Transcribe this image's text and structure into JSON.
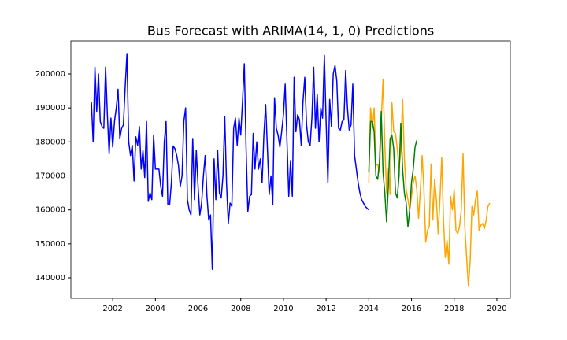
{
  "chart_data": {
    "type": "line",
    "title": "Bus Forecast with ARIMA(14, 1, 0) Predictions",
    "xlim": [
      2000.04,
      2020.63
    ],
    "xticks": [
      2002,
      2004,
      2006,
      2008,
      2010,
      2012,
      2014,
      2016,
      2018,
      2020
    ],
    "ylim": [
      133980,
      209720
    ],
    "yticks": [
      140000,
      150000,
      160000,
      170000,
      180000,
      190000,
      200000
    ],
    "grid": false,
    "series": [
      {
        "color": "#0000ff",
        "x": [
          2001,
          2001.083,
          2001.167,
          2001.25,
          2001.333,
          2001.417,
          2001.5,
          2001.583,
          2001.667,
          2001.75,
          2001.833,
          2001.917,
          2002,
          2002.083,
          2002.167,
          2002.25,
          2002.333,
          2002.417,
          2002.5,
          2002.583,
          2002.667,
          2002.75,
          2002.833,
          2002.917,
          2003,
          2003.083,
          2003.167,
          2003.25,
          2003.333,
          2003.417,
          2003.5,
          2003.583,
          2003.667,
          2003.75,
          2003.833,
          2003.917,
          2004,
          2004.083,
          2004.167,
          2004.25,
          2004.333,
          2004.417,
          2004.5,
          2004.583,
          2004.667,
          2004.75,
          2004.833,
          2004.917,
          2005,
          2005.083,
          2005.167,
          2005.25,
          2005.333,
          2005.417,
          2005.5,
          2005.583,
          2005.667,
          2005.75,
          2005.833,
          2005.917,
          2006,
          2006.083,
          2006.167,
          2006.25,
          2006.333,
          2006.417,
          2006.5,
          2006.583,
          2006.667,
          2006.75,
          2006.833,
          2006.917,
          2007,
          2007.083,
          2007.167,
          2007.25,
          2007.333,
          2007.417,
          2007.5,
          2007.583,
          2007.667,
          2007.75,
          2007.833,
          2007.917,
          2008,
          2008.083,
          2008.167,
          2008.25,
          2008.333,
          2008.417,
          2008.5,
          2008.583,
          2008.667,
          2008.75,
          2008.833,
          2008.917,
          2009,
          2009.083,
          2009.167,
          2009.25,
          2009.333,
          2009.417,
          2009.5,
          2009.583,
          2009.667,
          2009.75,
          2009.833,
          2009.917,
          2010,
          2010.083,
          2010.167,
          2010.25,
          2010.333,
          2010.417,
          2010.5,
          2010.583,
          2010.667,
          2010.75,
          2010.833,
          2010.917,
          2011,
          2011.083,
          2011.167,
          2011.25,
          2011.333,
          2011.417,
          2011.5,
          2011.583,
          2011.667,
          2011.75,
          2011.833,
          2011.917,
          2012,
          2012.083,
          2012.167,
          2012.25,
          2012.333,
          2012.417,
          2012.5,
          2012.583,
          2012.667,
          2012.75,
          2012.833,
          2012.917,
          2013,
          2013.083,
          2013.167,
          2013.25,
          2013.333,
          2013.417,
          2013.5,
          2013.583,
          2013.667,
          2013.75,
          2013.833,
          2013.917,
          2014
        ],
        "values": [
          191800,
          180000,
          202000,
          189000,
          200000,
          186000,
          184500,
          184000,
          202000,
          188000,
          176500,
          187000,
          178500,
          186000,
          190000,
          195500,
          181000,
          184000,
          185000,
          196000,
          206000,
          180000,
          176000,
          179000,
          168500,
          181500,
          179000,
          184500,
          172000,
          177500,
          169500,
          186000,
          162500,
          165000,
          163000,
          182000,
          172000,
          172000,
          172000,
          167000,
          164000,
          180000,
          186000,
          161500,
          161500,
          168000,
          178800,
          178000,
          176000,
          173000,
          167000,
          170000,
          186000,
          190000,
          163000,
          160000,
          158500,
          181000,
          163000,
          177500,
          167000,
          158500,
          162000,
          170000,
          176000,
          164000,
          157000,
          158500,
          142500,
          175000,
          163000,
          177500,
          165000,
          163500,
          170000,
          187500,
          168000,
          156000,
          162000,
          161000,
          184000,
          187000,
          179000,
          187000,
          182000,
          192000,
          203000,
          178000,
          159500,
          164000,
          164500,
          182500,
          172000,
          180000,
          172000,
          175000,
          168000,
          182000,
          191000,
          178000,
          164500,
          170000,
          161500,
          193000,
          184000,
          182000,
          178500,
          183000,
          188000,
          197000,
          180000,
          164000,
          174500,
          164000,
          199000,
          183000,
          188000,
          186500,
          179000,
          192000,
          199000,
          185000,
          180000,
          179000,
          187000,
          202000,
          184000,
          194000,
          180000,
          190000,
          187000,
          205500,
          186000,
          168000,
          192500,
          184500,
          200000,
          202500,
          198000,
          184000,
          183500,
          186000,
          186500,
          201000,
          190000,
          183500,
          185000,
          197000,
          176000,
          172000,
          168000,
          165000,
          163000,
          162000,
          161000,
          160500,
          160000
        ]
      },
      {
        "color": "#ffa500",
        "x": [
          2014,
          2014.083,
          2014.167,
          2014.25,
          2014.333,
          2014.417,
          2014.5,
          2014.583,
          2014.667,
          2014.75,
          2014.833,
          2014.917,
          2015,
          2015.083,
          2015.167,
          2015.25,
          2015.333,
          2015.417,
          2015.5,
          2015.583,
          2015.667,
          2015.75,
          2015.833,
          2015.917,
          2016,
          2016.083,
          2016.167,
          2016.25,
          2016.333,
          2016.417,
          2016.5,
          2016.583,
          2016.667,
          2016.75,
          2016.833,
          2016.917,
          2017,
          2017.083,
          2017.167,
          2017.25,
          2017.333,
          2017.417,
          2017.5,
          2017.583,
          2017.667,
          2017.75,
          2017.833,
          2017.917,
          2018,
          2018.083,
          2018.167,
          2018.25,
          2018.333,
          2018.417,
          2018.5,
          2018.583,
          2018.667,
          2018.75,
          2018.833,
          2018.917,
          2019,
          2019.083,
          2019.167,
          2019.25,
          2019.333,
          2019.417,
          2019.5,
          2019.583,
          2019.667
        ],
        "values": [
          168000,
          190000,
          184000,
          190000,
          173000,
          173500,
          171000,
          186000,
          198500,
          179000,
          165000,
          172000,
          164500,
          191500,
          183000,
          182500,
          178000,
          172000,
          177500,
          192500,
          175000,
          166000,
          163000,
          160000,
          164000,
          168000,
          170000,
          166000,
          157500,
          166000,
          176000,
          166000,
          150500,
          154000,
          155000,
          173500,
          157000,
          169000,
          163000,
          153000,
          163000,
          175500,
          157000,
          146000,
          151000,
          144000,
          164000,
          160000,
          166000,
          154000,
          153000,
          155000,
          160000,
          176500,
          155000,
          146000,
          137500,
          145000,
          161000,
          158500,
          163000,
          165500,
          154000,
          155500,
          156000,
          154500,
          157000,
          161000,
          162000
        ]
      },
      {
        "color": "#008000",
        "x": [
          2014,
          2014.083,
          2014.167,
          2014.25,
          2014.333,
          2014.417,
          2014.5,
          2014.583,
          2014.667,
          2014.75,
          2014.833,
          2014.917,
          2015,
          2015.083,
          2015.167,
          2015.25,
          2015.333,
          2015.417,
          2015.5,
          2015.583,
          2015.667,
          2015.75,
          2015.833,
          2015.917,
          2016,
          2016.083,
          2016.167,
          2016.25
        ],
        "values": [
          171000,
          186000,
          186000,
          183000,
          170000,
          169000,
          174000,
          189000,
          171000,
          165000,
          156500,
          167000,
          181000,
          182000,
          178000,
          165000,
          163500,
          170000,
          185500,
          172000,
          165000,
          162000,
          155000,
          160000,
          168000,
          172000,
          178500,
          180500
        ]
      }
    ]
  }
}
